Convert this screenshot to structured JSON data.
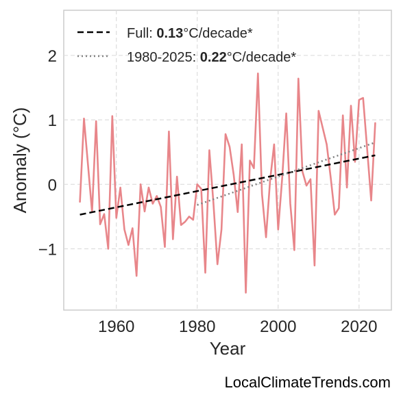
{
  "chart_data": {
    "type": "line",
    "xlabel": "Year",
    "ylabel": "Anomaly (°C)",
    "xlim": [
      1947,
      2028
    ],
    "ylim": [
      -1.95,
      2.7
    ],
    "xticks": [
      1960,
      1980,
      2000,
      2020
    ],
    "yticks": [
      -1,
      0,
      1,
      2
    ],
    "ytick_labels": [
      "−1",
      "0",
      "1",
      "2"
    ],
    "grid": true,
    "legend_position": "top-left",
    "series": [
      {
        "color": "#e8868a",
        "x": [
          1951,
          1952,
          1953,
          1954,
          1955,
          1956,
          1957,
          1958,
          1959,
          1960,
          1961,
          1962,
          1963,
          1964,
          1965,
          1966,
          1967,
          1968,
          1969,
          1970,
          1971,
          1972,
          1973,
          1974,
          1975,
          1976,
          1977,
          1978,
          1979,
          1980,
          1981,
          1982,
          1983,
          1984,
          1985,
          1986,
          1987,
          1988,
          1989,
          1990,
          1991,
          1992,
          1993,
          1994,
          1995,
          1996,
          1997,
          1998,
          1999,
          2000,
          2001,
          2002,
          2003,
          2004,
          2005,
          2006,
          2007,
          2008,
          2009,
          2010,
          2011,
          2012,
          2013,
          2014,
          2015,
          2016,
          2017,
          2018,
          2019,
          2020,
          2021,
          2022,
          2023,
          2024
        ],
        "y": [
          -0.27,
          1.02,
          0.3,
          -0.43,
          0.98,
          -0.62,
          -0.46,
          -1.0,
          1.06,
          -0.52,
          -0.05,
          -0.7,
          -0.94,
          -0.68,
          -1.42,
          0.0,
          -0.42,
          -0.05,
          -0.3,
          -0.18,
          -0.35,
          -0.97,
          0.82,
          -0.85,
          0.12,
          -0.63,
          -0.58,
          -0.5,
          -0.55,
          0.0,
          -0.07,
          -1.37,
          0.53,
          -0.28,
          -1.24,
          -0.7,
          0.78,
          0.58,
          0.15,
          -0.43,
          0.62,
          -1.68,
          0.37,
          0.25,
          1.72,
          -0.15,
          -0.82,
          0.06,
          0.62,
          -0.7,
          0.1,
          1.1,
          -0.3,
          -1.02,
          1.64,
          0.2,
          -0.02,
          0.08,
          -1.26,
          1.14,
          0.88,
          0.62,
          0.1,
          -0.47,
          -0.37,
          1.07,
          -0.05,
          1.22,
          0.35,
          1.31,
          1.34,
          0.55,
          -0.25,
          0.95
        ]
      }
    ],
    "trend_lines": [
      {
        "style": "dashed",
        "color": "#000000",
        "x": [
          1951,
          2024
        ],
        "y": [
          -0.47,
          0.45
        ],
        "label_pre": "Full: ",
        "label_value": "0.13",
        "label_post": "°C/decade*"
      },
      {
        "style": "dotted",
        "color": "#808080",
        "x": [
          1980,
          2024
        ],
        "y": [
          -0.32,
          0.65
        ],
        "label_pre": "1980-2025: ",
        "label_value": "0.22",
        "label_post": "°C/decade*"
      }
    ]
  },
  "watermark": "LocalClimateTrends.com"
}
